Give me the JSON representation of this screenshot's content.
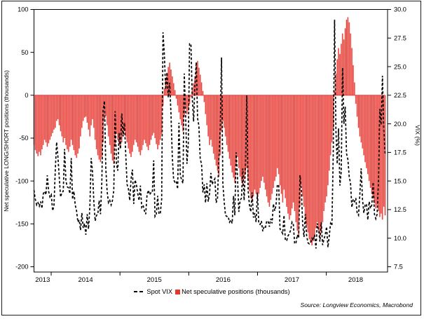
{
  "chart": {
    "left_axis_title": "Net speculative LONG/SHORT positions (thousands)",
    "right_axis_title": "VIX (%)",
    "source": "Source: Longview Economics, Macrobond",
    "legend": {
      "spot_vix_label": "Spot VIX",
      "net_positions_label": "Net speculative positions (thousands)"
    },
    "colors": {
      "bar_core": "#e6362e",
      "bar_light": "#f59490",
      "zero_line": "#e6362e",
      "line": "#000000",
      "axis": "#000000"
    }
  },
  "chart_data": {
    "type": "bar+line",
    "title": "",
    "x_axis": {
      "start_fractional_year": 2013.75,
      "end_fractional_year": 2018.855,
      "year_boundaries": [
        2014,
        2015,
        2016,
        2017,
        2018
      ],
      "labels": [
        "2013",
        "2014",
        "2015",
        "2016",
        "2017",
        "2018"
      ],
      "frequency": "weekly"
    },
    "left_axis": {
      "title": "Net speculative LONG/SHORT positions (thousands)",
      "min": -200,
      "max": 100,
      "ticks": [
        100,
        50,
        0,
        -50,
        -100,
        -150,
        -200
      ]
    },
    "right_axis": {
      "title": "VIX (%)",
      "min": 7.5,
      "max": 30.0,
      "ticks": [
        30.0,
        27.5,
        25.0,
        22.5,
        20.0,
        17.5,
        15.0,
        12.5,
        10.0,
        7.5
      ]
    },
    "series": [
      {
        "name": "Net speculative positions (thousands)",
        "type": "bar",
        "axis": "left",
        "values": [
          -58,
          -64,
          -68,
          -71,
          -66,
          -70,
          -63,
          -58,
          -52,
          -55,
          -60,
          -56,
          -52,
          -48,
          -44,
          -40,
          -38,
          -30,
          -28,
          -35,
          -42,
          -48,
          -55,
          -50,
          -58,
          -63,
          -66,
          -60,
          -52,
          -58,
          -64,
          -70,
          -73,
          -68,
          -62,
          -48,
          -38,
          -30,
          -26,
          -25,
          -32,
          -40,
          -48,
          -35,
          -28,
          -38,
          -52,
          -63,
          -70,
          -75,
          -78,
          -72,
          -55,
          -30,
          -24,
          -35,
          -48,
          -58,
          -68,
          -76,
          -80,
          -60,
          -45,
          -52,
          -58,
          -62,
          -55,
          -48,
          -42,
          -48,
          -55,
          -62,
          -68,
          -72,
          -66,
          -58,
          -52,
          -55,
          -60,
          -66,
          -70,
          -64,
          -58,
          -52,
          -56,
          -60,
          -64,
          -58,
          -52,
          -47,
          -44,
          -50,
          -57,
          -63,
          -58,
          -52,
          -45,
          -12,
          8,
          18,
          26,
          33,
          38,
          30,
          22,
          14,
          6,
          -4,
          -12,
          -20,
          -28,
          -35,
          -42,
          -25,
          -15,
          -22,
          -18,
          -10,
          -2,
          6,
          14,
          22,
          35,
          40,
          32,
          24,
          15,
          5,
          -8,
          -22,
          -35,
          -48,
          -58,
          -52,
          -60,
          -68,
          -75,
          -82,
          -88,
          -95,
          -70,
          -42,
          -30,
          -38,
          -48,
          -58,
          -66,
          -74,
          -82,
          -90,
          -96,
          -102,
          -80,
          -72,
          -85,
          -95,
          -100,
          -106,
          -98,
          -92,
          -85,
          -100,
          -112,
          -120,
          -125,
          -118,
          -110,
          -115,
          -122,
          -115,
          -108,
          -100,
          -95,
          -102,
          -110,
          -118,
          -125,
          -130,
          -122,
          -115,
          -108,
          -100,
          -95,
          -85,
          -92,
          -105,
          -115,
          -125,
          -110,
          -120,
          -130,
          -138,
          -145,
          -140,
          -132,
          -125,
          -135,
          -148,
          -158,
          -165,
          -130,
          -105,
          -118,
          -130,
          -142,
          -152,
          -160,
          -168,
          -172,
          -175,
          -170,
          -163,
          -155,
          -148,
          -158,
          -165,
          -158,
          -148,
          -135,
          -125,
          -118,
          -105,
          -88,
          -70,
          -55,
          -40,
          5,
          25,
          42,
          55,
          48,
          60,
          72,
          65,
          78,
          88,
          91,
          85,
          72,
          55,
          35,
          15,
          -10,
          -25,
          -38,
          -48,
          -55,
          -62,
          -70,
          -78,
          -85,
          -92,
          -100,
          -108,
          -115,
          -120,
          -126,
          -132,
          -128,
          -135,
          -142,
          -138,
          -145,
          -130,
          -140
        ]
      },
      {
        "name": "Spot VIX",
        "type": "dashed-line",
        "axis": "right",
        "values": [
          14.2,
          13.4,
          12.9,
          13.1,
          12.8,
          13.2,
          12.6,
          13.9,
          14.1,
          13.8,
          15.5,
          14.1,
          13.6,
          13.8,
          12.4,
          12.8,
          15.9,
          18.4,
          17.1,
          15.3,
          13.6,
          14.0,
          14.1,
          17.8,
          15.0,
          14.5,
          14.4,
          13.9,
          17.0,
          13.4,
          14.1,
          12.9,
          12.4,
          11.4,
          11.6,
          10.7,
          12.2,
          10.9,
          11.3,
          10.3,
          12.1,
          10.8,
          12.7,
          17.0,
          15.8,
          13.2,
          11.5,
          12.0,
          12.1,
          13.3,
          12.1,
          14.9,
          21.2,
          22.0,
          16.1,
          14.1,
          13.1,
          13.3,
          12.9,
          13.3,
          14.2,
          21.1,
          16.5,
          15.9,
          19.2,
          17.8,
          20.9,
          18.9,
          20.1,
          17.3,
          14.7,
          14.3,
          13.3,
          15.2,
          16.0,
          13.0,
          15.1,
          14.7,
          13.9,
          13.3,
          14.6,
          12.7,
          12.9,
          12.4,
          12.1,
          13.8,
          14.2,
          13.8,
          14.0,
          14.0,
          16.8,
          11.9,
          12.1,
          13.7,
          12.1,
          12.2,
          13.4,
          28.0,
          26.1,
          23.0,
          24.5,
          22.3,
          23.6,
          20.9,
          17.1,
          15.1,
          14.9,
          15.0,
          14.3,
          20.1,
          15.5,
          15.1,
          14.8,
          24.4,
          20.7,
          16.5,
          18.2,
          27.0,
          27.0,
          22.3,
          20.2,
          23.4,
          25.4,
          20.5,
          19.8,
          16.9,
          16.5,
          14.0,
          14.7,
          13.1,
          14.8,
          13.2,
          13.9,
          15.7,
          14.7,
          15.0,
          15.2,
          13.1,
          13.5,
          17.0,
          19.4,
          25.8,
          14.8,
          13.2,
          12.0,
          11.9,
          11.9,
          11.4,
          11.6,
          11.3,
          13.7,
          12.0,
          17.5,
          15.4,
          12.3,
          13.3,
          13.5,
          16.1,
          13.3,
          16.2,
          22.5,
          14.2,
          12.9,
          12.3,
          14.0,
          11.8,
          12.2,
          11.4,
          14.0,
          11.3,
          11.2,
          11.5,
          10.6,
          11.0,
          10.9,
          11.5,
          11.5,
          11.0,
          11.7,
          11.3,
          13.0,
          12.4,
          12.9,
          14.7,
          14.6,
          10.8,
          10.6,
          10.4,
          12.0,
          9.8,
          9.8,
          10.2,
          10.4,
          10.7,
          11.4,
          11.2,
          9.5,
          9.6,
          10.3,
          10.0,
          15.5,
          14.3,
          11.3,
          10.1,
          12.1,
          10.2,
          9.6,
          9.5,
          9.6,
          10.0,
          9.8,
          10.3,
          9.1,
          11.3,
          10.7,
          9.7,
          11.4,
          9.4,
          9.9,
          10.3,
          11.0,
          9.2,
          10.2,
          11.3,
          11.1,
          17.3,
          29.1,
          19.5,
          16.5,
          19.6,
          14.6,
          15.8,
          24.9,
          20.0,
          21.5,
          17.4,
          16.9,
          15.4,
          14.8,
          12.7,
          13.4,
          13.2,
          13.5,
          12.2,
          12.0,
          13.8,
          16.1,
          13.4,
          12.2,
          12.9,
          13.0,
          11.6,
          13.2,
          12.6,
          12.9,
          14.9,
          12.1,
          11.7,
          12.1,
          14.8,
          21.3,
          19.9,
          24.2,
          19.5,
          17.4
        ]
      }
    ],
    "grid": "off",
    "legend_position": "bottom-center"
  }
}
